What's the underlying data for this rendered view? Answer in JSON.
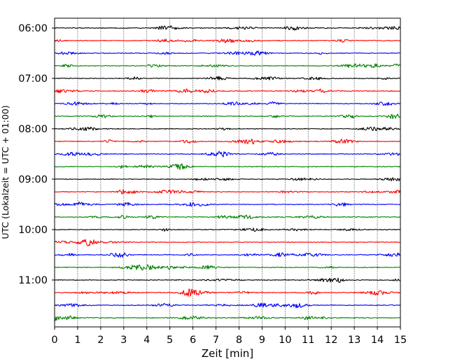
{
  "chart_data": {
    "type": "line",
    "title": "",
    "xlabel": "Zeit  [min]",
    "ylabel": "UTC (Lokalzeit = UTC + 01:00)",
    "xlim": [
      0,
      15
    ],
    "x_ticks": [
      "0",
      "1",
      "2",
      "3",
      "4",
      "5",
      "6",
      "7",
      "8",
      "9",
      "10",
      "11",
      "12",
      "13",
      "14",
      "15"
    ],
    "y_ticks": [
      "06:00",
      "07:00",
      "08:00",
      "09:00",
      "10:00",
      "11:00"
    ],
    "grid": "vertical dotted",
    "legend": "none",
    "trace_interval_min": 15,
    "trace_count": 24,
    "trace_colors": [
      "#000000",
      "#ff0000",
      "#0000ff",
      "#008000"
    ],
    "series": [
      {
        "start": "06:00"
      },
      {
        "start": "06:15"
      },
      {
        "start": "06:30"
      },
      {
        "start": "06:45"
      },
      {
        "start": "07:00"
      },
      {
        "start": "07:15"
      },
      {
        "start": "07:30"
      },
      {
        "start": "07:45"
      },
      {
        "start": "08:00"
      },
      {
        "start": "08:15"
      },
      {
        "start": "08:30"
      },
      {
        "start": "08:45"
      },
      {
        "start": "09:00"
      },
      {
        "start": "09:15"
      },
      {
        "start": "09:30"
      },
      {
        "start": "09:45"
      },
      {
        "start": "10:00"
      },
      {
        "start": "10:15"
      },
      {
        "start": "10:30"
      },
      {
        "start": "10:45"
      },
      {
        "start": "11:00"
      },
      {
        "start": "11:15"
      },
      {
        "start": "11:30"
      },
      {
        "start": "11:45"
      }
    ]
  }
}
